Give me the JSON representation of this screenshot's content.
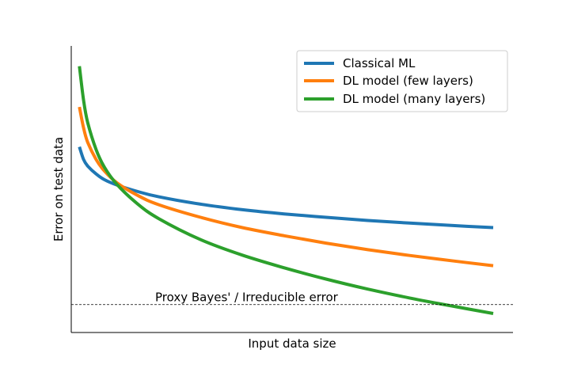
{
  "chart_data": {
    "type": "line",
    "title": "",
    "xlabel": "Input data size",
    "ylabel": "Error on test data",
    "x_ticks": "none",
    "y_ticks": "none",
    "xlim": [
      0,
      1
    ],
    "ylim": [
      0,
      1
    ],
    "grid": false,
    "legend_position": "top-right",
    "x": [
      0.01,
      0.02,
      0.03,
      0.05,
      0.07,
      0.1,
      0.15,
      0.2,
      0.3,
      0.4,
      0.5,
      0.6,
      0.7,
      0.8,
      0.9,
      1.0
    ],
    "series": [
      {
        "name": "Classical ML",
        "color": "#1f77b4",
        "values": [
          0.658,
          0.61,
          0.585,
          0.555,
          0.533,
          0.513,
          0.488,
          0.468,
          0.44,
          0.419,
          0.403,
          0.39,
          0.378,
          0.368,
          0.359,
          0.351
        ]
      },
      {
        "name": "DL model (few layers)",
        "color": "#ff7f0e",
        "values": [
          0.81,
          0.73,
          0.675,
          0.61,
          0.566,
          0.521,
          0.473,
          0.438,
          0.39,
          0.351,
          0.32,
          0.292,
          0.267,
          0.245,
          0.225,
          0.206
        ]
      },
      {
        "name": "DL model (many layers)",
        "color": "#2ca02c",
        "values": [
          0.965,
          0.835,
          0.75,
          0.648,
          0.58,
          0.515,
          0.44,
          0.385,
          0.305,
          0.246,
          0.198,
          0.155,
          0.117,
          0.083,
          0.053,
          0.024
        ]
      }
    ],
    "annotations": [
      {
        "text": "Proxy Bayes' / Irreducible error",
        "y": 0.058,
        "style": "dashed-horizontal-line"
      }
    ]
  }
}
